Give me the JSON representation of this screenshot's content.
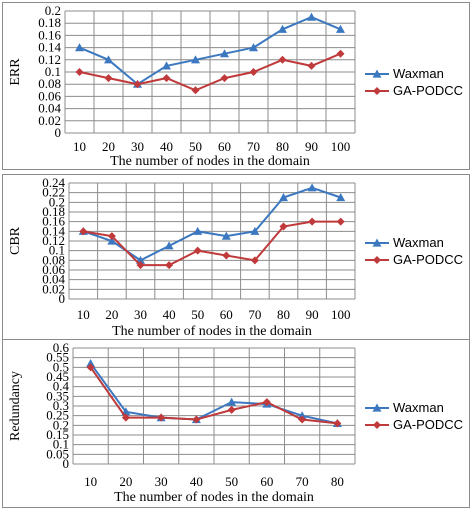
{
  "colors": {
    "waxman": "#3c78c0",
    "gapodcc": "#c0393b",
    "grid": "#8c8c8c"
  },
  "chart_data": [
    {
      "type": "line",
      "ylabel": "ERR",
      "xlabel": "The number of nodes in the domain",
      "categories": [
        "10",
        "20",
        "30",
        "40",
        "50",
        "60",
        "70",
        "80",
        "90",
        "100"
      ],
      "ylim": [
        0,
        0.2
      ],
      "ystep": 0.02,
      "yticks": [
        "0",
        "0.02",
        "0.04",
        "0.06",
        "0.08",
        "0.1",
        "0.12",
        "0.14",
        "0.16",
        "0.18",
        "0.2"
      ],
      "grid": true,
      "legend_position": "right",
      "series": [
        {
          "name": "Waxman",
          "marker": "triangle",
          "color": "#3c78c0",
          "values": [
            0.14,
            0.12,
            0.08,
            0.11,
            0.12,
            0.13,
            0.14,
            0.17,
            0.19,
            0.17
          ]
        },
        {
          "name": "GA-PODCC",
          "marker": "diamond",
          "color": "#c0393b",
          "values": [
            0.1,
            0.09,
            0.08,
            0.09,
            0.07,
            0.09,
            0.1,
            0.12,
            0.11,
            0.13
          ]
        }
      ]
    },
    {
      "type": "line",
      "ylabel": "CBR",
      "xlabel": "The number of nodes in the domain",
      "categories": [
        "10",
        "20",
        "30",
        "40",
        "50",
        "60",
        "70",
        "80",
        "90",
        "100"
      ],
      "ylim": [
        0,
        0.24
      ],
      "ystep": 0.02,
      "yticks": [
        "0",
        "0.02",
        "0.04",
        "0.06",
        "0.08",
        "0.1",
        "0.12",
        "0.14",
        "0.16",
        "0.18",
        "0.2",
        "0.22",
        "0.24"
      ],
      "grid": true,
      "legend_position": "right",
      "series": [
        {
          "name": "Waxman",
          "marker": "triangle",
          "color": "#3c78c0",
          "values": [
            0.14,
            0.12,
            0.08,
            0.11,
            0.14,
            0.13,
            0.14,
            0.21,
            0.23,
            0.21
          ]
        },
        {
          "name": "GA-PODCC",
          "marker": "diamond",
          "color": "#c0393b",
          "values": [
            0.14,
            0.13,
            0.07,
            0.07,
            0.1,
            0.09,
            0.08,
            0.15,
            0.16,
            0.16
          ]
        }
      ]
    },
    {
      "type": "line",
      "ylabel": "Redundancy",
      "xlabel": "The number of nodes in the domain",
      "categories": [
        "10",
        "20",
        "30",
        "40",
        "50",
        "60",
        "70",
        "80"
      ],
      "ylim": [
        0,
        0.6
      ],
      "ystep": 0.05,
      "yticks": [
        "0",
        "0.05",
        "0.1",
        "0.15",
        "0.2",
        "0.25",
        "0.3",
        "0.35",
        "0.4",
        "0.45",
        "0.5",
        "0.55",
        "0.6"
      ],
      "grid": true,
      "legend_position": "right",
      "series": [
        {
          "name": "Waxman",
          "marker": "triangle",
          "color": "#3c78c0",
          "values": [
            0.52,
            0.27,
            0.24,
            0.23,
            0.32,
            0.31,
            0.25,
            0.21
          ]
        },
        {
          "name": "GA-PODCC",
          "marker": "diamond",
          "color": "#c0393b",
          "values": [
            0.5,
            0.24,
            0.24,
            0.23,
            0.28,
            0.32,
            0.23,
            0.21
          ]
        }
      ]
    }
  ]
}
